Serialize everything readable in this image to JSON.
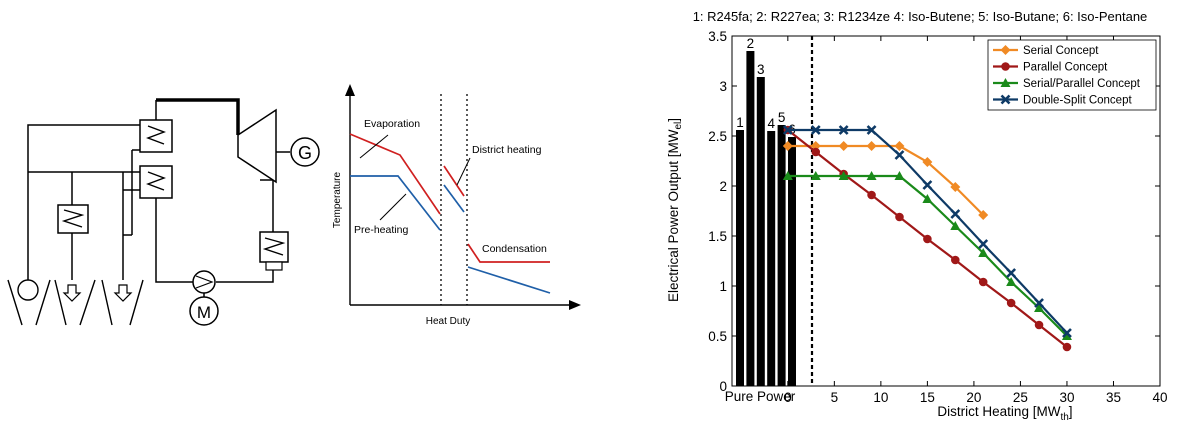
{
  "schematic": {
    "generator_label": "G",
    "motor_label": "M"
  },
  "tq_diagram": {
    "xlabel": "Heat Duty",
    "ylabel": "Temperature",
    "annotations": {
      "evaporation": "Evaporation",
      "preheating": "Pre-heating",
      "district_heating": "District heating",
      "condensation": "Condensation"
    },
    "colors": {
      "hot": "#d02020",
      "cold": "#1f5fa8"
    }
  },
  "chart_data": {
    "type": "line",
    "title": "1: R245fa; 2: R227ea; 3: R1234ze 4: Iso-Butene; 5: Iso-Butane; 6: Iso-Pentane",
    "xlabel": "District Heating [MW",
    "xlabel_sub": "th",
    "xlabel_end": "]",
    "ylabel": "Electrical Power Output [MW",
    "ylabel_sub": "el",
    "ylabel_end": "]",
    "xlim": [
      -6,
      40
    ],
    "ylim": [
      0,
      3.5
    ],
    "xticks": [
      "0",
      "5",
      "10",
      "15",
      "20",
      "25",
      "30",
      "35",
      "40"
    ],
    "yticks": [
      "0",
      "0.5",
      "1",
      "1.5",
      "2",
      "2.5",
      "3",
      "3.5"
    ],
    "grid": false,
    "legend_position": "top-right",
    "pure_power": {
      "label": "Pure Power",
      "bars": [
        {
          "label": "1",
          "value": 2.56
        },
        {
          "label": "2",
          "value": 3.35
        },
        {
          "label": "3",
          "value": 3.09
        },
        {
          "label": "4",
          "value": 2.55
        },
        {
          "label": "5",
          "value": 2.61
        },
        {
          "label": "6",
          "value": 2.49
        }
      ]
    },
    "series": [
      {
        "name": "Serial Concept",
        "color": "#f08a24",
        "marker": "diamond",
        "x": [
          0,
          3,
          6,
          9,
          12,
          15,
          18,
          21
        ],
        "y": [
          2.4,
          2.4,
          2.4,
          2.4,
          2.4,
          2.24,
          1.99,
          1.71
        ]
      },
      {
        "name": "Parallel Concept",
        "color": "#a01818",
        "marker": "circle",
        "x": [
          0,
          3,
          6,
          9,
          12,
          15,
          18,
          21,
          24,
          27,
          30
        ],
        "y": [
          2.56,
          2.34,
          2.12,
          1.91,
          1.69,
          1.47,
          1.26,
          1.04,
          0.83,
          0.61,
          0.39
        ]
      },
      {
        "name": "Serial/Parallel Concept",
        "color": "#1a8a1a",
        "marker": "triangle",
        "x": [
          0,
          3,
          6,
          9,
          12,
          15,
          18,
          21,
          24,
          27,
          30
        ],
        "y": [
          2.1,
          2.1,
          2.1,
          2.1,
          2.1,
          1.87,
          1.6,
          1.33,
          1.04,
          0.78,
          0.5
        ]
      },
      {
        "name": "Double-Split Concept",
        "color": "#0e3a66",
        "marker": "cross",
        "x": [
          0,
          3,
          6,
          9,
          12,
          15,
          18,
          21,
          24,
          27,
          30
        ],
        "y": [
          2.56,
          2.56,
          2.56,
          2.56,
          2.31,
          2.01,
          1.72,
          1.42,
          1.13,
          0.83,
          0.53
        ]
      }
    ]
  }
}
